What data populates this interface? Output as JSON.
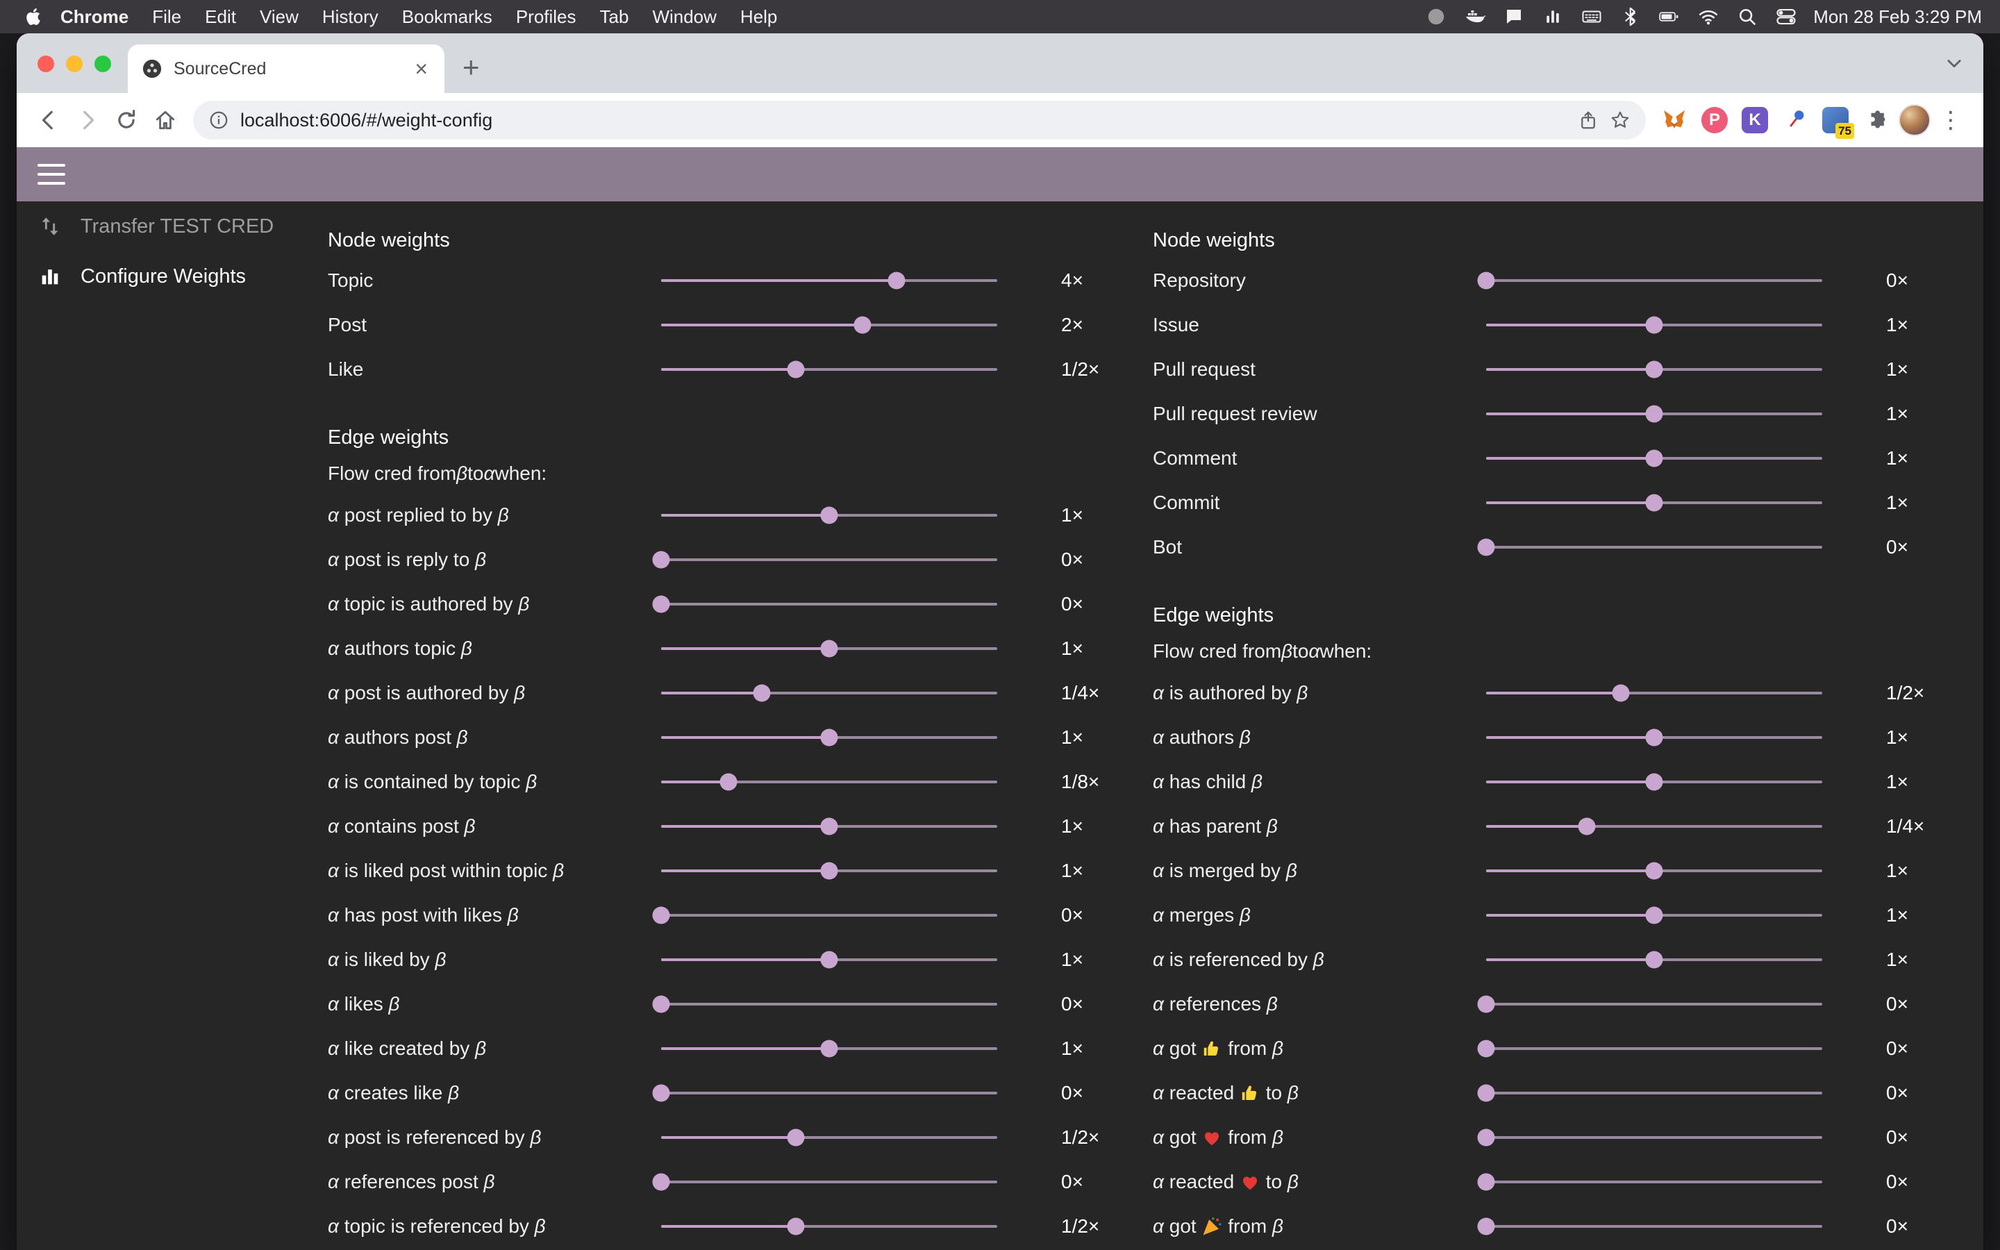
{
  "colors": {
    "appbar_bg": "#8d7d91",
    "page_bg": "#262626",
    "slider_rail": "#99899e",
    "slider_fill": "#c2a0c8",
    "slider_thumb": "#c9a6cf"
  },
  "menubar": {
    "items": [
      "Chrome",
      "File",
      "Edit",
      "View",
      "History",
      "Bookmarks",
      "Profiles",
      "Tab",
      "Window",
      "Help"
    ],
    "status_icons": [
      "record-icon",
      "docker-icon",
      "chat-icon",
      "stats-icon",
      "keyboard-icon",
      "bluetooth-icon",
      "battery-icon",
      "wifi-icon",
      "spotlight-search-icon",
      "control-center-icon"
    ],
    "clock": "Mon 28 Feb 3:29 PM"
  },
  "browser": {
    "tab": {
      "title": "SourceCred"
    },
    "url": "localhost:6006/#/weight-config",
    "extensions": [
      {
        "name": "metamask-icon"
      },
      {
        "name": "pocket-icon",
        "letter": "P",
        "color": "#ee5a77"
      },
      {
        "name": "kagi-icon",
        "letter": "K",
        "color": "#7056c6",
        "square": true
      },
      {
        "name": "pin-icon"
      },
      {
        "name": "notes-icon",
        "badge": "75"
      },
      {
        "name": "extensions-puzzle-icon"
      }
    ]
  },
  "app": {
    "sidebar": [
      {
        "label": "Transfer TEST CRED",
        "icon": "transfer-icon",
        "active": false
      },
      {
        "label": "Configure Weights",
        "icon": "bar-chart-icon",
        "active": true
      }
    ],
    "panels": [
      {
        "node_title": "Node weights",
        "node_rows": [
          {
            "label": "Topic",
            "value": "4×",
            "pos": 0.7
          },
          {
            "label": "Post",
            "value": "2×",
            "pos": 0.6
          },
          {
            "label": "Like",
            "value": "1/2×",
            "pos": 0.4
          }
        ],
        "edge_title": "Edge weights",
        "flow_label": "Flow cred from β to α when:",
        "edge_rows": [
          {
            "label": "α post replied to by β",
            "value": "1×",
            "pos": 0.5
          },
          {
            "label": "α post is reply to β",
            "value": "0×",
            "pos": 0
          },
          {
            "label": "α topic is authored by β",
            "value": "0×",
            "pos": 0
          },
          {
            "label": "α authors topic β",
            "value": "1×",
            "pos": 0.5
          },
          {
            "label": "α post is authored by β",
            "value": "1/4×",
            "pos": 0.3
          },
          {
            "label": "α authors post β",
            "value": "1×",
            "pos": 0.5
          },
          {
            "label": "α is contained by topic β",
            "value": "1/8×",
            "pos": 0.2
          },
          {
            "label": "α contains post β",
            "value": "1×",
            "pos": 0.5
          },
          {
            "label": "α is liked post within topic β",
            "value": "1×",
            "pos": 0.5
          },
          {
            "label": "α has post with likes β",
            "value": "0×",
            "pos": 0
          },
          {
            "label": "α is liked by β",
            "value": "1×",
            "pos": 0.5
          },
          {
            "label": "α likes β",
            "value": "0×",
            "pos": 0
          },
          {
            "label": "α like created by β",
            "value": "1×",
            "pos": 0.5
          },
          {
            "label": "α creates like β",
            "value": "0×",
            "pos": 0
          },
          {
            "label": "α post is referenced by β",
            "value": "1/2×",
            "pos": 0.4
          },
          {
            "label": "α references post β",
            "value": "0×",
            "pos": 0
          },
          {
            "label": "α topic is referenced by β",
            "value": "1/2×",
            "pos": 0.4
          }
        ]
      },
      {
        "node_title": "Node weights",
        "node_rows": [
          {
            "label": "Repository",
            "value": "0×",
            "pos": 0
          },
          {
            "label": "Issue",
            "value": "1×",
            "pos": 0.5
          },
          {
            "label": "Pull request",
            "value": "1×",
            "pos": 0.5
          },
          {
            "label": "Pull request review",
            "value": "1×",
            "pos": 0.5
          },
          {
            "label": "Comment",
            "value": "1×",
            "pos": 0.5
          },
          {
            "label": "Commit",
            "value": "1×",
            "pos": 0.5
          },
          {
            "label": "Bot",
            "value": "0×",
            "pos": 0
          }
        ],
        "edge_title": "Edge weights",
        "flow_label": "Flow cred from β to α when:",
        "edge_rows": [
          {
            "label": "α is authored by β",
            "value": "1/2×",
            "pos": 0.4
          },
          {
            "label": "α authors β",
            "value": "1×",
            "pos": 0.5
          },
          {
            "label": "α has child β",
            "value": "1×",
            "pos": 0.5
          },
          {
            "label": "α has parent β",
            "value": "1/4×",
            "pos": 0.3
          },
          {
            "label": "α is merged by β",
            "value": "1×",
            "pos": 0.5
          },
          {
            "label": "α merges β",
            "value": "1×",
            "pos": 0.5
          },
          {
            "label": "α is referenced by β",
            "value": "1×",
            "pos": 0.5
          },
          {
            "label": "α references β",
            "value": "0×",
            "pos": 0
          },
          {
            "label": "α got 👍 from β",
            "value": "0×",
            "pos": 0
          },
          {
            "label": "α reacted 👍 to β",
            "value": "0×",
            "pos": 0
          },
          {
            "label": "α got ❤️ from β",
            "value": "0×",
            "pos": 0
          },
          {
            "label": "α reacted ❤️ to β",
            "value": "0×",
            "pos": 0
          },
          {
            "label": "α got 🎉 from β",
            "value": "0×",
            "pos": 0
          }
        ]
      }
    ]
  }
}
